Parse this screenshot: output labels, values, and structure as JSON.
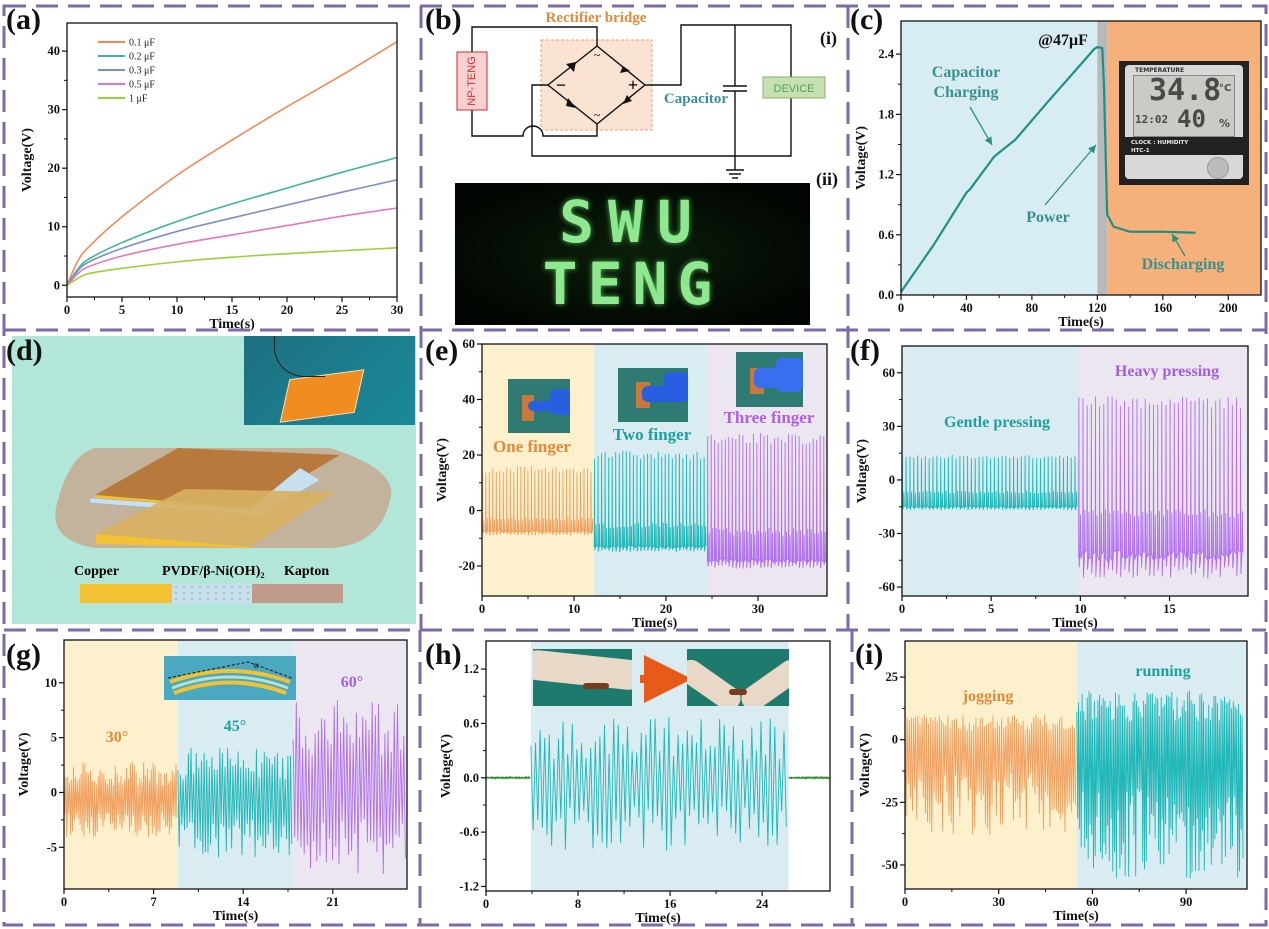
{
  "panels": {
    "labels": [
      "(a)",
      "(b)",
      "(c)",
      "(d)",
      "(e)",
      "(f)",
      "(g)",
      "(h)",
      "(i)"
    ],
    "border_color": "#7e6aa6"
  },
  "panel_b": {
    "title": "Rectifier bridge",
    "source_label": "NP-TENG",
    "capacitor_label": "Capacitor",
    "device_label": "DEVICE",
    "bridge_symbols": {
      "ac": "~",
      "minus": "−",
      "plus": "+"
    },
    "sub_labels": [
      "(i)",
      "(ii)"
    ],
    "led_text": [
      "SWU",
      "TENG"
    ],
    "colors": {
      "title": "#e08a3c",
      "capacitor": "#3a8f9f",
      "source": "#d03030",
      "device": "#5aa050",
      "led": "#8fe88f"
    }
  },
  "panel_d": {
    "legend": [
      {
        "label": "Copper",
        "color": "#f2c232"
      },
      {
        "label": "PVDF/β-Ni(OH)₂",
        "color": "#c8dff0"
      },
      {
        "label": "Kapton",
        "color": "#c09a8a"
      }
    ],
    "background": "#b2e6d8"
  },
  "chart_data": [
    {
      "id": "a",
      "type": "line",
      "xlabel": "Time(s)",
      "ylabel": "Voltage(V)",
      "xlim": [
        0,
        30
      ],
      "ylim": [
        -2,
        44.8
      ],
      "xticks": [
        "0",
        "5",
        "10",
        "15",
        "20",
        "25",
        "30"
      ],
      "yticks": [
        "0",
        "10",
        "20",
        "30",
        "40"
      ],
      "legend_position": "top-left",
      "series": [
        {
          "name": "0.1 μF",
          "color": "#f08a5d",
          "x": [
            0,
            1,
            2,
            5,
            10,
            15,
            20,
            25,
            30
          ],
          "y": [
            0,
            4.2,
            6.6,
            11.7,
            18.8,
            24.8,
            30.5,
            35.9,
            41.6
          ]
        },
        {
          "name": "0.2 μF",
          "color": "#3fb49a",
          "x": [
            0,
            1,
            2,
            5,
            10,
            15,
            20,
            25,
            30
          ],
          "y": [
            0,
            2.8,
            4.5,
            7.3,
            10.9,
            13.9,
            16.6,
            19.3,
            21.8
          ]
        },
        {
          "name": "0.3 μF",
          "color": "#7d8fc4",
          "x": [
            0,
            1,
            2,
            5,
            10,
            15,
            20,
            25,
            30
          ],
          "y": [
            0,
            2.5,
            4.0,
            6.3,
            9.2,
            11.5,
            13.7,
            15.9,
            18.0
          ]
        },
        {
          "name": "0.5 μF",
          "color": "#e07ac0",
          "x": [
            0,
            1,
            2,
            5,
            10,
            15,
            20,
            25,
            30
          ],
          "y": [
            0,
            2.0,
            3.2,
            5.0,
            7.0,
            8.6,
            10.2,
            11.8,
            13.2
          ]
        },
        {
          "name": "1 μF",
          "color": "#9ccf3c",
          "x": [
            0,
            1,
            2,
            5,
            10,
            15,
            20,
            25,
            30
          ],
          "y": [
            0,
            1.2,
            2.0,
            2.9,
            4.0,
            4.8,
            5.4,
            5.9,
            6.4
          ]
        }
      ]
    },
    {
      "id": "c",
      "type": "line",
      "xlabel": "Time(s)",
      "ylabel": "Voltage(V)",
      "xlim": [
        0,
        220
      ],
      "ylim": [
        0,
        2.73
      ],
      "xticks": [
        "0",
        "40",
        "80",
        "120",
        "160",
        "200"
      ],
      "yticks": [
        "0.0",
        "0.6",
        "1.2",
        "1.8",
        "2.4"
      ],
      "regions": [
        {
          "from": 0,
          "to": 120,
          "color": "#d8edf3"
        },
        {
          "from": 120,
          "to": 126,
          "color": "#b9b9b9"
        },
        {
          "from": 126,
          "to": 220,
          "color": "#f6b07a"
        }
      ],
      "series": [
        {
          "color": "#1f8f86",
          "x": [
            0,
            20,
            40,
            42,
            57,
            70,
            90,
            110,
            118,
            120,
            123,
            124,
            126,
            130,
            140,
            160,
            180
          ],
          "y": [
            0.03,
            0.5,
            1.02,
            1.05,
            1.38,
            1.55,
            1.93,
            2.3,
            2.45,
            2.47,
            2.46,
            2.1,
            0.8,
            0.68,
            0.63,
            0.63,
            0.62
          ]
        }
      ],
      "annotations": [
        "@47μF",
        "Capacitor",
        "Charging",
        "Power",
        "Discharging"
      ],
      "annotation_color": "#3a8f8f",
      "inset": {
        "top": "TEMPERATURE",
        "temp": "34.8",
        "temp_unit": "°C",
        "clock": "12:02",
        "humidity": "40",
        "humidity_unit": "%",
        "label1": "CLOCK : HUMIDITY",
        "label2": "HTC-1"
      }
    },
    {
      "id": "e",
      "type": "line",
      "xlabel": "Time(s)",
      "ylabel": "Voltage(V)",
      "xlim": [
        0,
        37.5
      ],
      "ylim": [
        -30.8,
        60
      ],
      "xticks": [
        "0",
        "10",
        "20",
        "30"
      ],
      "yticks": [
        "-20",
        "0",
        "20",
        "40",
        "60"
      ],
      "regions": [
        {
          "from": 0,
          "to": 12.2,
          "color": "#fdf0cc"
        },
        {
          "from": 12.2,
          "to": 24.5,
          "color": "#d8ecf1"
        },
        {
          "from": 24.5,
          "to": 37.5,
          "color": "#ece6f0"
        }
      ],
      "signals": [
        {
          "label": "One finger",
          "color": "#f0a060",
          "t_start": 0,
          "t_end": 12.2,
          "v_max": 16,
          "v_min": -9,
          "baseline": -7.5,
          "pulses": 32,
          "style": "pulse"
        },
        {
          "label": "Two finger",
          "color": "#20b8b8",
          "t_start": 12.2,
          "t_end": 24.5,
          "v_max": 21.5,
          "v_min": -15,
          "baseline": -13,
          "pulses": 32,
          "style": "pulse"
        },
        {
          "label": "Three finger",
          "color": "#b070f0",
          "t_start": 24.5,
          "t_end": 37.5,
          "v_max": 28,
          "v_min": -21,
          "baseline": -18,
          "pulses": 34,
          "style": "pulse"
        }
      ],
      "annotations": [
        "One finger",
        "Two finger",
        "Three finger"
      ],
      "annotation_colors": [
        "#e08a3c",
        "#1fa0a0",
        "#b060e0"
      ]
    },
    {
      "id": "f",
      "type": "line",
      "xlabel": "Time(s)",
      "ylabel": "Voltage(V)",
      "xlim": [
        0,
        19.4
      ],
      "ylim": [
        -65,
        75
      ],
      "xticks": [
        "0",
        "5",
        "10",
        "15"
      ],
      "yticks": [
        "-60",
        "-30",
        "0",
        "30",
        "60"
      ],
      "regions": [
        {
          "from": 0,
          "to": 9.9,
          "color": "#d8ecf1"
        },
        {
          "from": 9.9,
          "to": 19.4,
          "color": "#ece6f0"
        }
      ],
      "signals": [
        {
          "label": "Gentle pressing",
          "color": "#20b8b8",
          "t_start": 0,
          "t_end": 9.9,
          "v_max": 14,
          "v_min": -17,
          "baseline": -15,
          "pulses": 46,
          "style": "pulse"
        },
        {
          "label": "Heavy pressing",
          "color": "#b070f0",
          "t_start": 9.9,
          "t_end": 19.2,
          "v_max": 47,
          "v_min": -55,
          "baseline": -42,
          "pulses": 40,
          "style": "pulse"
        }
      ],
      "annotations": [
        "Gentle pressing",
        "Heavy pressing"
      ],
      "annotation_colors": [
        "#1fa0a0",
        "#a060e0"
      ]
    },
    {
      "id": "g",
      "type": "line",
      "xlabel": "Time(s)",
      "ylabel": "Voltage(V)",
      "xlim": [
        0,
        26.8
      ],
      "ylim": [
        -8.8,
        13.9
      ],
      "xticks": [
        "0",
        "7",
        "14",
        "21"
      ],
      "yticks": [
        "-5",
        "0",
        "5",
        "10"
      ],
      "regions": [
        {
          "from": 0,
          "to": 8.9,
          "color": "#fdf0cc"
        },
        {
          "from": 8.9,
          "to": 17.9,
          "color": "#d8ecf1"
        },
        {
          "from": 17.9,
          "to": 26.8,
          "color": "#ece6f0"
        }
      ],
      "signals": [
        {
          "label": "30°",
          "color": "#f0a060",
          "t_start": 0,
          "t_end": 8.9,
          "v_max": 2.8,
          "v_min": -4.3,
          "baseline": -0.5,
          "pulses": 60,
          "style": "osc"
        },
        {
          "label": "45°",
          "color": "#20b8b8",
          "t_start": 8.9,
          "t_end": 17.9,
          "v_max": 4.2,
          "v_min": -6,
          "baseline": -0.5,
          "pulses": 44,
          "style": "osc"
        },
        {
          "label": "60°",
          "color": "#b070f0",
          "t_start": 17.9,
          "t_end": 26.8,
          "v_max": 8.5,
          "v_min": -7.5,
          "baseline": 0.5,
          "pulses": 36,
          "style": "osc"
        }
      ],
      "annotations": [
        "30°",
        "45°",
        "60°"
      ],
      "annotation_colors": [
        "#e08a3c",
        "#1fa0a0",
        "#a060e0"
      ]
    },
    {
      "id": "h",
      "type": "line",
      "xlabel": "Time(s)",
      "ylabel": "Voltage(V)",
      "xlim": [
        0,
        29.9
      ],
      "ylim": [
        -1.25,
        1.51
      ],
      "xticks": [
        "0",
        "8",
        "16",
        "24"
      ],
      "yticks": [
        "-1.2",
        "-0.6",
        "0.0",
        "0.6",
        "1.2"
      ],
      "regions": [
        {
          "from": 3.9,
          "to": 26.3,
          "color": "#d8ecf1"
        }
      ],
      "signals": [
        {
          "color": "#2e8b2e",
          "t_start": 0,
          "t_end": 3.9,
          "v_max": 0.01,
          "v_min": -0.01,
          "baseline": 0,
          "pulses": 40,
          "style": "osc"
        },
        {
          "color": "#20b8b8",
          "t_start": 3.9,
          "t_end": 26.3,
          "v_max": 0.68,
          "v_min": -0.82,
          "baseline": -0.05,
          "pulses": 56,
          "style": "osc"
        },
        {
          "color": "#2e8b2e",
          "t_start": 26.3,
          "t_end": 29.9,
          "v_max": 0.01,
          "v_min": -0.01,
          "baseline": 0,
          "pulses": 36,
          "style": "osc"
        }
      ]
    },
    {
      "id": "i",
      "type": "line",
      "xlabel": "Time(s)",
      "ylabel": "Voltage(V)",
      "xlim": [
        0,
        109.5
      ],
      "ylim": [
        -59.6,
        39.4
      ],
      "xticks": [
        "0",
        "30",
        "60",
        "90"
      ],
      "yticks": [
        "-50",
        "-25",
        "0",
        "25"
      ],
      "regions": [
        {
          "from": 0,
          "to": 55,
          "color": "#fdf0cc"
        },
        {
          "from": 55,
          "to": 109.5,
          "color": "#d8ecf1"
        }
      ],
      "signals": [
        {
          "label": "jogging",
          "color": "#f0a060",
          "t_start": 0,
          "t_end": 55,
          "v_max": 10,
          "v_min": -38,
          "baseline": 0,
          "pulses": 80,
          "style": "osc"
        },
        {
          "label": "running",
          "color": "#20b8b8",
          "t_start": 55,
          "t_end": 108.5,
          "v_max": 20,
          "v_min": -56,
          "baseline": 0,
          "pulses": 95,
          "style": "osc"
        }
      ],
      "annotations": [
        "jogging",
        "running"
      ],
      "annotation_colors": [
        "#e08a3c",
        "#1fa0a0"
      ]
    }
  ]
}
